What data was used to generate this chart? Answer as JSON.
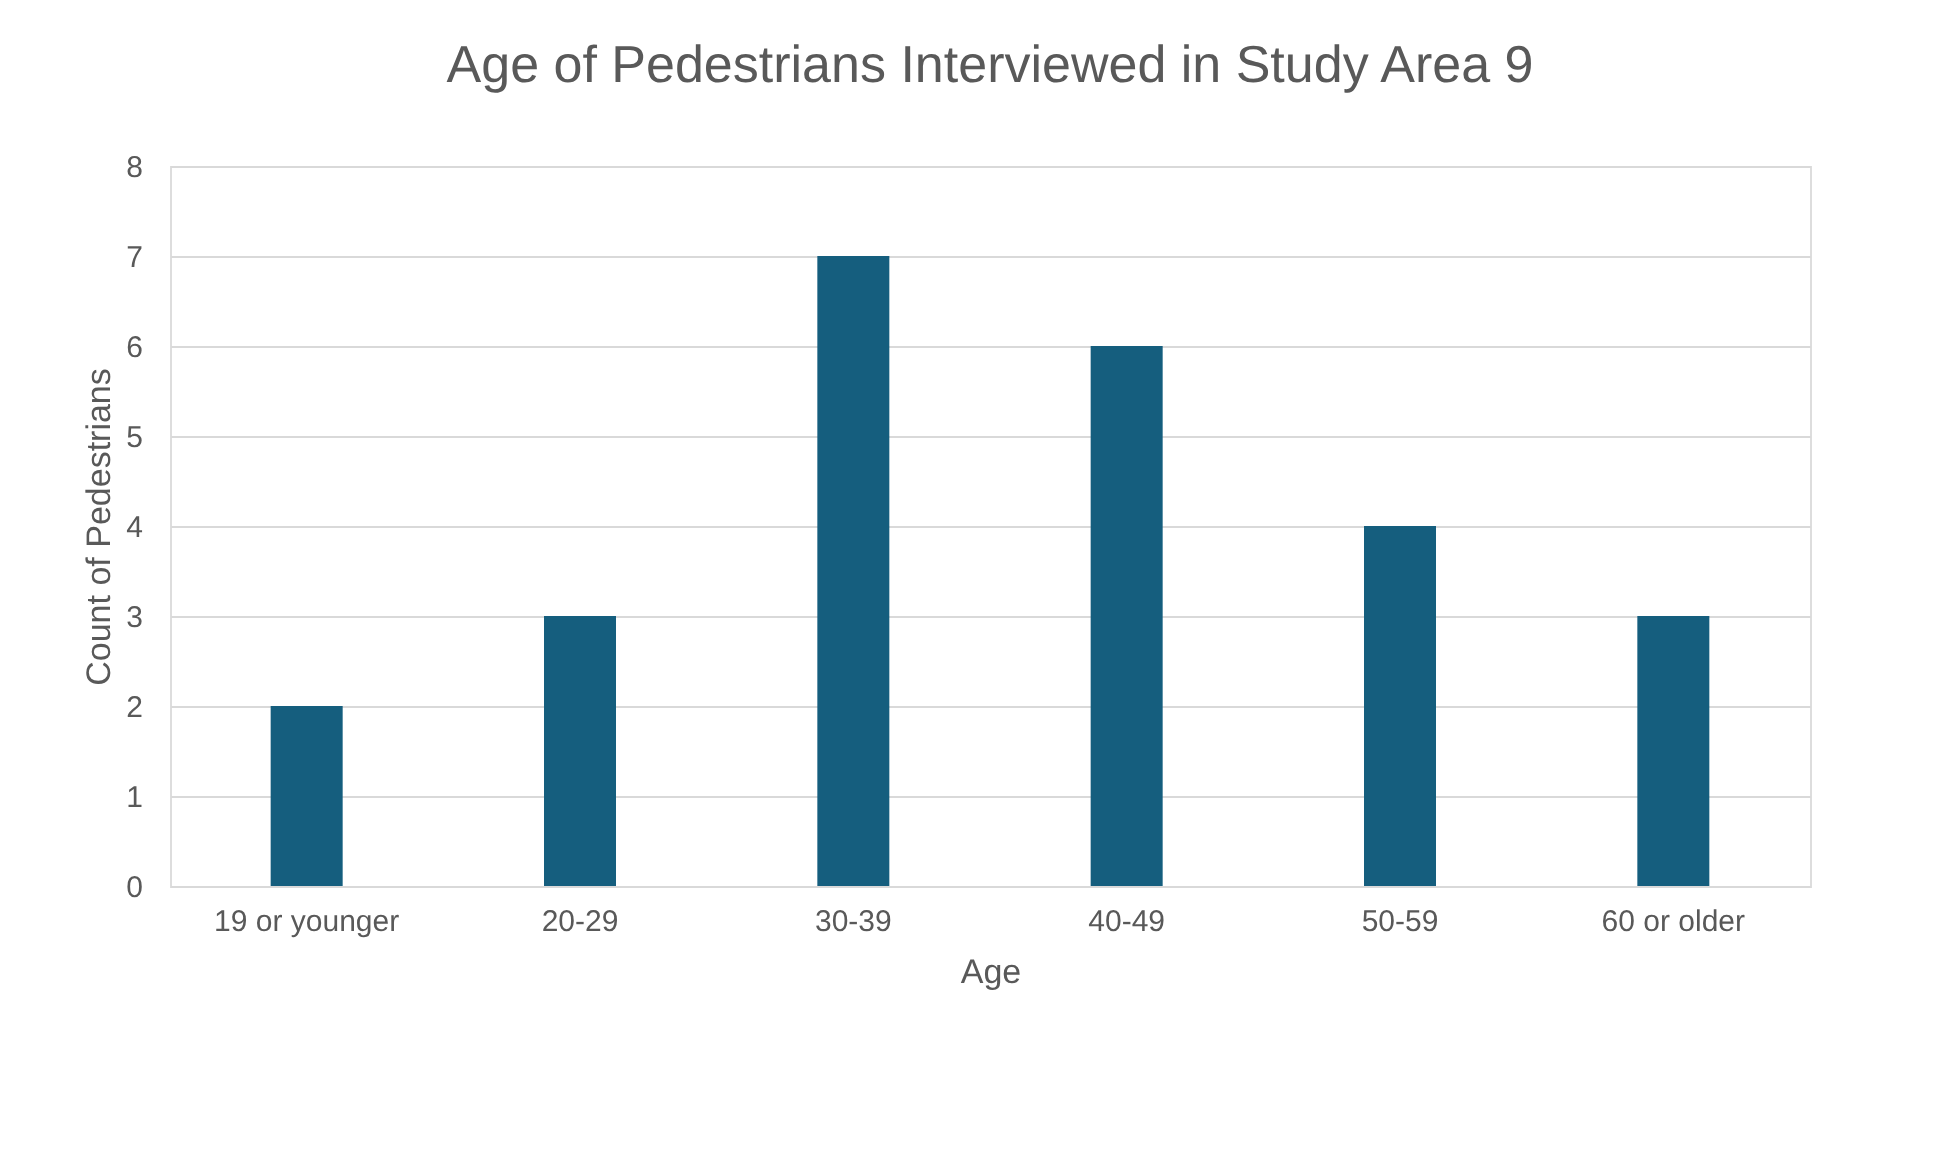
{
  "chart_data": {
    "type": "bar",
    "title": "Age of Pedestrians Interviewed in Study Area 9",
    "xlabel": "Age",
    "ylabel": "Count of Pedestrians",
    "categories": [
      "19 or younger",
      "20-29",
      "30-39",
      "40-49",
      "50-59",
      "60 or older"
    ],
    "values": [
      2,
      3,
      7,
      6,
      4,
      3
    ],
    "color": "#155e7e",
    "ylim": [
      0,
      8
    ],
    "yticks": [
      0,
      1,
      2,
      3,
      4,
      5,
      6,
      7,
      8
    ],
    "grid": "y"
  }
}
